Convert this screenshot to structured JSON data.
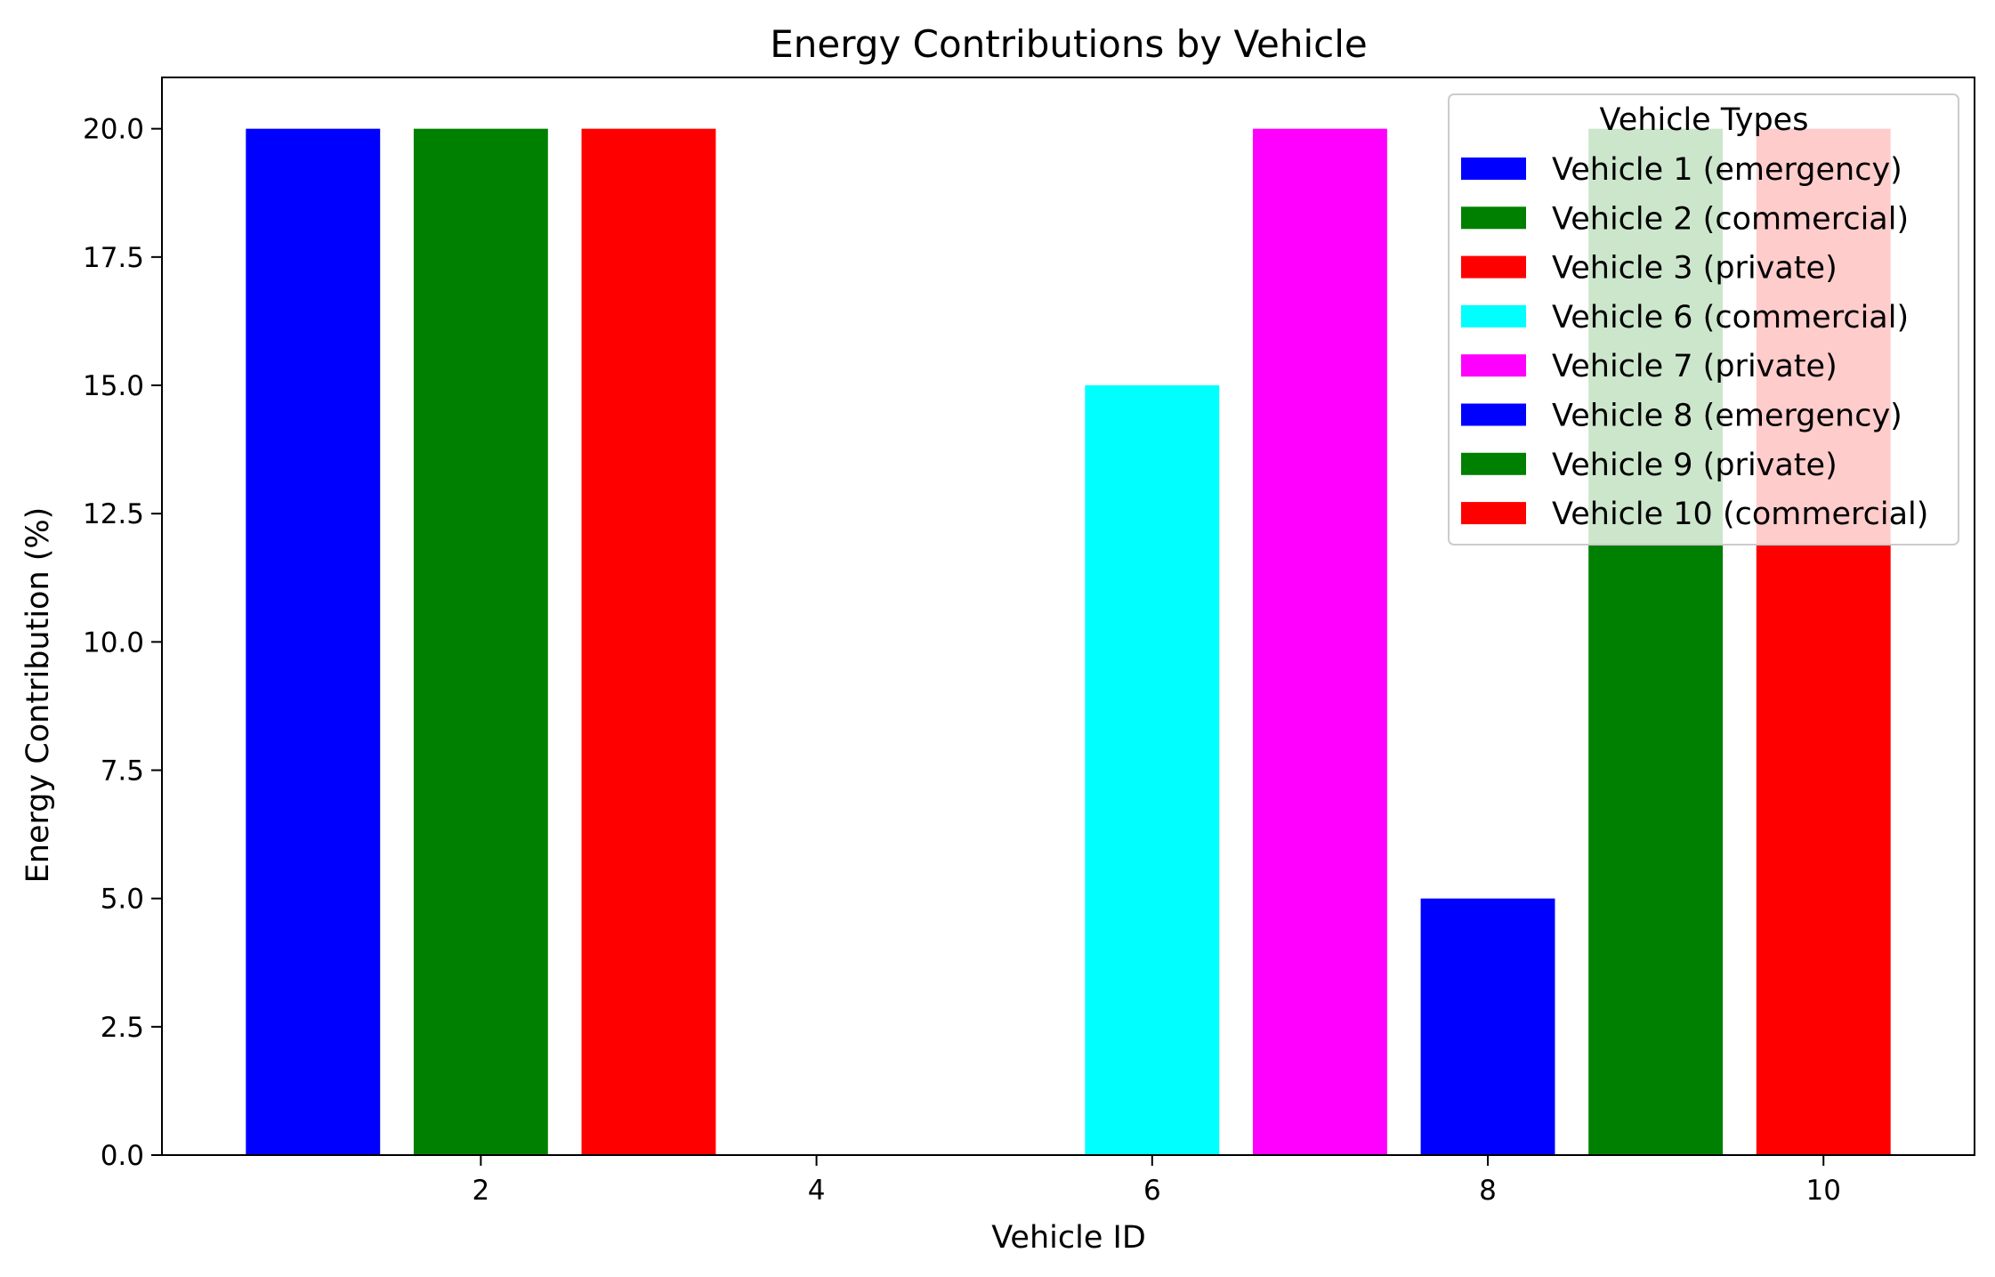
{
  "chart_data": {
    "type": "bar",
    "title": "Energy Contributions by Vehicle",
    "xlabel": "Vehicle ID",
    "ylabel": "Energy Contribution (%)",
    "xlim": [
      0.1,
      10.9
    ],
    "ylim": [
      0,
      21
    ],
    "xticks": [
      2,
      4,
      6,
      8,
      10
    ],
    "yticks": [
      0.0,
      2.5,
      5.0,
      7.5,
      10.0,
      12.5,
      15.0,
      17.5,
      20.0
    ],
    "ytick_labels": [
      "0.0",
      "2.5",
      "5.0",
      "7.5",
      "10.0",
      "12.5",
      "15.0",
      "17.5",
      "20.0"
    ],
    "bar_width": 0.8,
    "grid": false,
    "bars": [
      {
        "vehicle_id": 1,
        "value": 20,
        "color": "#0000ff",
        "label": "Vehicle 1 (emergency)"
      },
      {
        "vehicle_id": 2,
        "value": 20,
        "color": "#008000",
        "label": "Vehicle 2 (commercial)"
      },
      {
        "vehicle_id": 3,
        "value": 20,
        "color": "#ff0000",
        "label": "Vehicle 3 (private)"
      },
      {
        "vehicle_id": 6,
        "value": 15,
        "color": "#00ffff",
        "label": "Vehicle 6 (commercial)"
      },
      {
        "vehicle_id": 7,
        "value": 20,
        "color": "#ff00ff",
        "label": "Vehicle 7 (private)"
      },
      {
        "vehicle_id": 8,
        "value": 5,
        "color": "#0000ff",
        "label": "Vehicle 8 (emergency)"
      },
      {
        "vehicle_id": 9,
        "value": 20,
        "color": "#008000",
        "label": "Vehicle 9 (private)"
      },
      {
        "vehicle_id": 10,
        "value": 20,
        "color": "#ff0000",
        "label": "Vehicle 10 (commercial)"
      }
    ],
    "legend": {
      "title": "Vehicle Types",
      "placement": "upper right"
    }
  }
}
